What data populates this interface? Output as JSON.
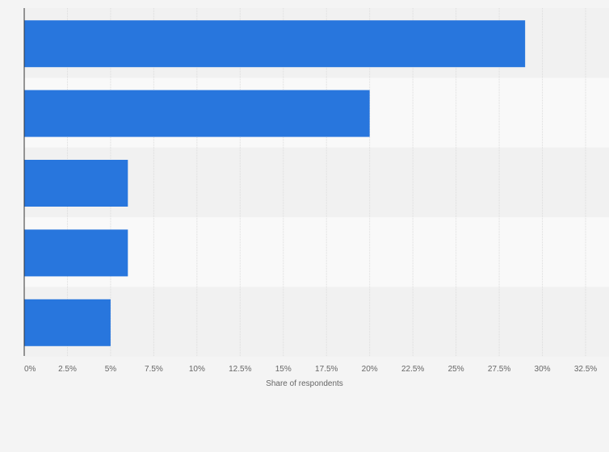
{
  "chart_data": {
    "type": "bar",
    "orientation": "horizontal",
    "categories": [
      "",
      "",
      "",
      "",
      ""
    ],
    "values": [
      29,
      20,
      6,
      6,
      5
    ],
    "xlabel": "Share of respondents",
    "ylabel": "",
    "xlim": [
      0,
      32.5
    ],
    "ticks": [
      "0%",
      "2.5%",
      "5%",
      "7.5%",
      "10%",
      "12.5%",
      "15%",
      "17.5%",
      "20%",
      "22.5%",
      "25%",
      "27.5%",
      "30%",
      "32.5%"
    ],
    "tick_values": [
      0,
      2.5,
      5,
      7.5,
      10,
      12.5,
      15,
      17.5,
      20,
      22.5,
      25,
      27.5,
      30,
      32.5
    ],
    "grid": true,
    "legend": "none",
    "colors": {
      "bar": "#2876dd",
      "band_dark": "#f1f1f1",
      "band_light": "#f9f9f9",
      "grid": "#dcdcdc",
      "axis": "#333333",
      "background": "#f4f4f4"
    }
  }
}
